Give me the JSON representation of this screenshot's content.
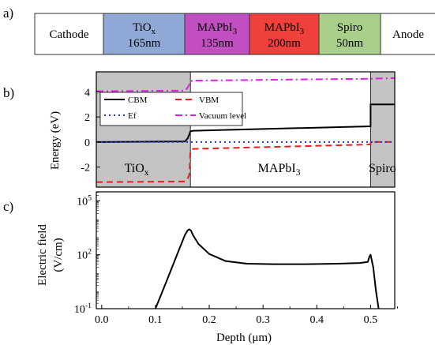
{
  "panels": {
    "a": "a)",
    "b": "b)",
    "c": "c)"
  },
  "device_stack": [
    {
      "name": "Cathode",
      "sub": "",
      "thickness": "",
      "color": "#ffffff"
    },
    {
      "name": "TiO",
      "sub": "x",
      "thickness": "165nm",
      "color": "#8fa8d6"
    },
    {
      "name": "MAPbI",
      "sub": "3",
      "thickness": "135nm",
      "color": "#c24fc2"
    },
    {
      "name": "MAPbI",
      "sub": "3",
      "thickness": "200nm",
      "color": "#f0403c"
    },
    {
      "name": "Spiro",
      "sub": "",
      "thickness": "50nm",
      "color": "#a9cf8a"
    },
    {
      "name": "Anode",
      "sub": "",
      "thickness": "",
      "color": "#ffffff"
    }
  ],
  "chart_data": [
    {
      "type": "line",
      "panel": "b",
      "ylabel": "Energy (eV)",
      "ylim": [
        -3.6,
        5.6
      ],
      "xlim": [
        -0.01,
        0.545
      ],
      "yticks": [
        -2,
        0,
        2,
        4
      ],
      "shaded_regions": [
        [
          -0.01,
          0.165
        ],
        [
          0.5,
          0.545
        ]
      ],
      "region_labels": [
        {
          "main": "TiO",
          "sub": "x",
          "x": 0.065
        },
        {
          "main": "MAPbI",
          "sub": "3",
          "x": 0.33
        },
        {
          "main": "Spiro",
          "sub": "",
          "x": 0.522
        }
      ],
      "legend_placement": "top-left",
      "series": [
        {
          "name": "CBM",
          "color": "#000000",
          "dash": "solid",
          "x": [
            -0.01,
            0.155,
            0.16,
            0.163,
            0.165,
            0.17,
            0.5,
            0.5,
            0.545
          ],
          "y": [
            0.0,
            0.05,
            0.3,
            0.6,
            0.85,
            0.9,
            1.25,
            3.0,
            3.0
          ]
        },
        {
          "name": "VBM",
          "color": "#e8201c",
          "dash": "dash",
          "x": [
            -0.01,
            0.155,
            0.16,
            0.163,
            0.165,
            0.17,
            0.5,
            0.5,
            0.545
          ],
          "y": [
            -3.2,
            -3.15,
            -2.9,
            -2.6,
            -0.7,
            -0.55,
            -0.2,
            0.0,
            0.0
          ]
        },
        {
          "name": "Ef",
          "color": "#2233dd",
          "dash": "dot",
          "x": [
            -0.01,
            0.545
          ],
          "y": [
            0.0,
            0.0
          ]
        },
        {
          "name": "Vacuum level",
          "color": "#e020e0",
          "dash": "dashdot",
          "x": [
            -0.01,
            0.155,
            0.16,
            0.163,
            0.165,
            0.17,
            0.5,
            0.545
          ],
          "y": [
            4.05,
            4.1,
            4.35,
            4.6,
            4.85,
            4.9,
            5.05,
            5.1
          ]
        }
      ]
    },
    {
      "type": "line",
      "panel": "c",
      "xlabel": "Depth (μm)",
      "ylabel": "Electric field",
      "ylabel2": "(V/cm)",
      "yscale": "log",
      "xlim": [
        -0.01,
        0.545
      ],
      "ylim": [
        0.1,
        316227
      ],
      "xticks": [
        0.0,
        0.1,
        0.2,
        0.3,
        0.4,
        0.5
      ],
      "xticklabels": [
        "0.0",
        "0.1",
        "0.2",
        "0.3",
        "0.4",
        "0.5"
      ],
      "yticks": [
        0.1,
        100,
        100000
      ],
      "yticklabels": [
        {
          "base": "10",
          "exp": "-1"
        },
        {
          "base": "10",
          "exp": "2"
        },
        {
          "base": "10",
          "exp": "5"
        }
      ],
      "series": [
        {
          "name": "",
          "color": "#000000",
          "x": [
            0.1,
            0.12,
            0.14,
            0.155,
            0.16,
            0.163,
            0.166,
            0.17,
            0.18,
            0.2,
            0.23,
            0.27,
            0.32,
            0.38,
            0.44,
            0.48,
            0.495,
            0.498,
            0.5,
            0.505,
            0.51,
            0.515
          ],
          "y": [
            0.1,
            3,
            100,
            1300,
            2300,
            2600,
            2200,
            1200,
            400,
            110,
            45,
            32,
            30,
            30,
            32,
            35,
            40,
            80,
            100,
            20,
            1,
            0.1
          ]
        }
      ]
    }
  ]
}
